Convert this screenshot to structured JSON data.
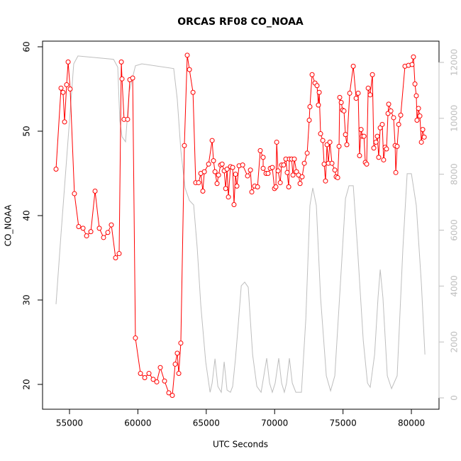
{
  "chart_data": {
    "type": "line",
    "title": "ORCAS RF08 CO_NOAA",
    "x_label": "UTC Seconds",
    "y_label": "CO_NOAA",
    "xlim": [
      53030,
      82020
    ],
    "xticks": [
      55000,
      60000,
      65000,
      70000,
      75000,
      80000
    ],
    "ylim": [
      17.06,
      60.67
    ],
    "yticks": [
      20,
      30,
      40,
      50,
      60
    ],
    "y2lim": [
      -406,
      12761
    ],
    "y2ticks": [
      0,
      2000,
      4000,
      6000,
      8000,
      10000,
      12000
    ],
    "y2_color": "#bebebe",
    "series": [
      {
        "axis": "y2",
        "color": "#bebebe",
        "marker": "none",
        "x": [
          54015,
          54380,
          54690,
          55000,
          55310,
          55620,
          58220,
          58530,
          58680,
          58840,
          59100,
          59360,
          59820,
          60290,
          62620,
          62880,
          63140,
          63450,
          63770,
          64080,
          64340,
          64600,
          64960,
          65280,
          65430,
          65640,
          65850,
          66100,
          66310,
          66520,
          66770,
          66930,
          67140,
          67350,
          67560,
          67810,
          68070,
          68390,
          68700,
          69010,
          69210,
          69420,
          69630,
          69830,
          70040,
          70300,
          70510,
          70710,
          70870,
          71080,
          71290,
          71550,
          71960,
          72280,
          72580,
          72790,
          73050,
          73360,
          73780,
          74090,
          74400,
          74810,
          75180,
          75440,
          75750,
          76060,
          76480,
          76790,
          76990,
          77310,
          77560,
          77720,
          77920,
          78240,
          78550,
          78960,
          79380,
          79690,
          80000,
          80360,
          80730,
          80990
        ],
        "values": [
          3350,
          5860,
          7890,
          9920,
          11950,
          12230,
          12110,
          11830,
          9920,
          9340,
          9160,
          10940,
          11880,
          11950,
          11780,
          10690,
          8860,
          7510,
          7060,
          6900,
          5360,
          3320,
          1290,
          200,
          530,
          1400,
          410,
          200,
          1290,
          280,
          200,
          410,
          1420,
          2690,
          4010,
          4140,
          3960,
          1550,
          410,
          200,
          790,
          1420,
          530,
          200,
          530,
          1420,
          530,
          200,
          530,
          1420,
          530,
          200,
          200,
          2820,
          6880,
          7510,
          6880,
          3580,
          790,
          250,
          790,
          4090,
          7130,
          7590,
          7590,
          5360,
          2060,
          530,
          380,
          1550,
          3580,
          4590,
          3580,
          790,
          330,
          790,
          5360,
          8020,
          8020,
          6880,
          4090,
          1550
        ]
      },
      {
        "color": "#ff0000",
        "marker": "circle",
        "x": [
          54015,
          54380,
          54530,
          54640,
          54790,
          54900,
          55050,
          55360,
          55670,
          55990,
          56250,
          56560,
          56870,
          57180,
          57490,
          57800,
          58060,
          58370,
          58630,
          58790,
          58840,
          58990,
          59250,
          59410,
          59620,
          59820,
          60190,
          60500,
          60810,
          61120,
          61380,
          61640,
          61950,
          62260,
          62520,
          62730,
          62880,
          62990,
          63140,
          63400,
          63610,
          63770,
          64030,
          64230,
          64440,
          64600,
          64750,
          64860,
          65170,
          65430,
          65530,
          65640,
          65790,
          65900,
          66050,
          66160,
          66310,
          66420,
          66520,
          66620,
          66770,
          66930,
          67030,
          67140,
          67240,
          67400,
          67660,
          68020,
          68230,
          68330,
          68540,
          68750,
          68950,
          69160,
          69160,
          69370,
          69520,
          69680,
          69830,
          69990,
          70090,
          70150,
          70250,
          70410,
          70510,
          70660,
          70820,
          70920,
          71030,
          71080,
          71240,
          71340,
          71440,
          71600,
          71750,
          71860,
          72010,
          72170,
          72380,
          72530,
          72580,
          72740,
          72950,
          73100,
          73200,
          73260,
          73360,
          73520,
          73620,
          73720,
          73830,
          73930,
          74040,
          74190,
          74400,
          74500,
          74610,
          74710,
          74760,
          74870,
          74970,
          75070,
          75180,
          75280,
          75490,
          75750,
          75960,
          76110,
          76210,
          76320,
          76420,
          76530,
          76630,
          76730,
          76840,
          76990,
          77150,
          77250,
          77410,
          77510,
          77610,
          77720,
          77870,
          77970,
          78080,
          78180,
          78290,
          78340,
          78500,
          78700,
          78810,
          78860,
          78960,
          79070,
          79220,
          79530,
          79790,
          80050,
          80150,
          80260,
          80360,
          80410,
          80520,
          80620,
          80730,
          80830,
          80940
        ],
        "values": [
          45.5,
          55.1,
          54.6,
          51.1,
          55.5,
          58.2,
          55.0,
          42.6,
          38.7,
          38.5,
          37.6,
          38.1,
          42.9,
          38.5,
          37.4,
          38.0,
          38.9,
          35.0,
          35.5,
          58.2,
          56.2,
          51.4,
          51.4,
          56.1,
          56.3,
          25.5,
          21.3,
          20.8,
          21.3,
          20.6,
          20.3,
          22.0,
          20.4,
          19.0,
          18.7,
          22.4,
          23.7,
          21.3,
          24.9,
          48.3,
          59.0,
          57.3,
          54.6,
          43.9,
          43.9,
          45.0,
          42.9,
          45.2,
          46.1,
          48.9,
          46.5,
          45.2,
          43.8,
          44.8,
          46.0,
          46.1,
          45.3,
          43.2,
          45.5,
          42.2,
          45.8,
          45.7,
          41.3,
          44.9,
          43.5,
          45.9,
          46.0,
          44.7,
          45.4,
          42.8,
          43.5,
          43.4,
          47.7,
          46.9,
          45.6,
          45.0,
          45.0,
          45.6,
          45.7,
          43.2,
          43.4,
          48.7,
          45.3,
          43.9,
          46.0,
          46.0,
          46.7,
          45.1,
          43.4,
          46.7,
          46.7,
          44.8,
          46.7,
          45.2,
          44.8,
          43.8,
          44.6,
          46.2,
          47.4,
          51.3,
          52.9,
          56.7,
          55.7,
          55.4,
          53.1,
          54.6,
          49.7,
          48.9,
          46.1,
          44.1,
          48.4,
          46.2,
          48.7,
          46.2,
          45.4,
          44.6,
          44.5,
          48.2,
          54.0,
          53.4,
          52.5,
          52.4,
          49.6,
          48.4,
          54.5,
          57.7,
          53.9,
          54.5,
          47.1,
          50.2,
          49.4,
          49.4,
          46.3,
          46.1,
          55.1,
          54.3,
          56.7,
          48.0,
          48.7,
          49.4,
          46.9,
          50.4,
          50.8,
          46.6,
          48.1,
          47.9,
          52.1,
          53.2,
          52.4,
          51.6,
          48.3,
          45.1,
          48.2,
          50.8,
          51.9,
          57.7,
          57.8,
          57.9,
          58.8,
          55.6,
          54.2,
          51.3,
          52.7,
          51.8,
          48.7,
          50.2,
          49.3
        ]
      }
    ]
  }
}
